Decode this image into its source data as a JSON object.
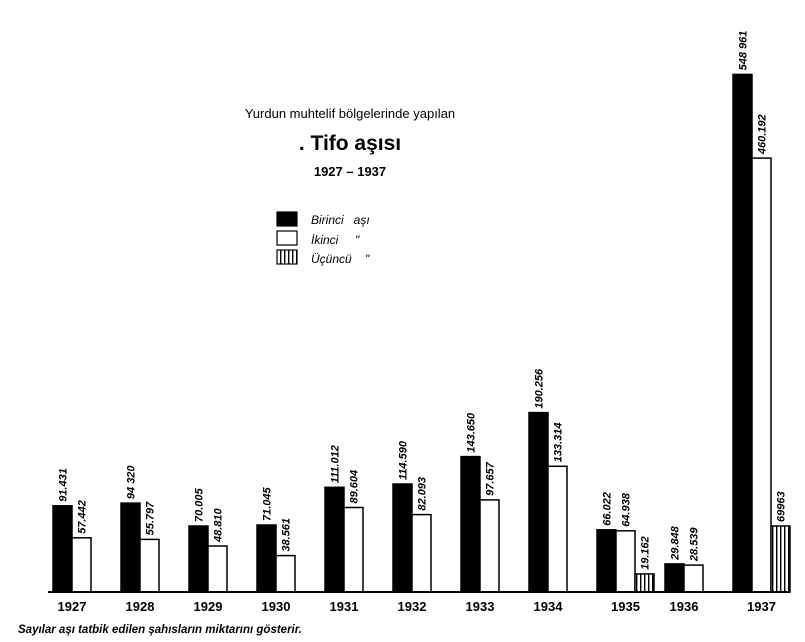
{
  "header": {
    "subtitle": "Yurdun muhtelif bölgelerinde yapılan",
    "title": ". Tifo aşısı",
    "range": "1927 – 1937"
  },
  "legend": [
    {
      "label": "Birinci   aşı",
      "pattern": "solid"
    },
    {
      "label": "İkinci     \"",
      "pattern": "white"
    },
    {
      "label": "Üçüncü    \"",
      "pattern": "striped"
    }
  ],
  "footnote": "Sayılar aşı tatbik edilen şahısların miktarını gösterir.",
  "colors": {
    "ink": "#000000",
    "paper": "#ffffff"
  },
  "chart_data": {
    "type": "bar",
    "title": ". Tifo aşısı",
    "subtitle": "Yurdun muhtelif bölgelerinde yapılan",
    "categories": [
      "1927",
      "1928",
      "1929",
      "1930",
      "1931",
      "1932",
      "1933",
      "1934",
      "1935",
      "1936",
      "1937"
    ],
    "series": [
      {
        "name": "Birinci aşı",
        "values": [
          91431,
          94320,
          70005,
          71045,
          111012,
          114590,
          143650,
          190256,
          66022,
          29848,
          548961
        ],
        "labels": [
          "91.431",
          "94 320",
          "70.005",
          "71.045",
          "111.012",
          "114.590",
          "143.650",
          "190.256",
          "66.022",
          "29.848",
          "548 961"
        ]
      },
      {
        "name": "İkinci",
        "values": [
          57442,
          55797,
          48810,
          38561,
          89604,
          82093,
          97657,
          133314,
          64938,
          28539,
          460192
        ],
        "labels": [
          "57.442",
          "55.797",
          "48.810",
          "38.561",
          "89.604",
          "82.093",
          "97.657",
          "133.314",
          "64.938",
          "28.539",
          "460.192"
        ]
      },
      {
        "name": "Üçüncü",
        "values": [
          null,
          null,
          null,
          null,
          null,
          null,
          null,
          null,
          19162,
          null,
          69963
        ],
        "labels": [
          "",
          "",
          "",
          "",
          "",
          "",
          "",
          "",
          "19.162",
          "",
          "69963"
        ]
      }
    ],
    "ylim": [
      0,
      560000
    ],
    "grid": false,
    "legend_position": "upper-center"
  }
}
